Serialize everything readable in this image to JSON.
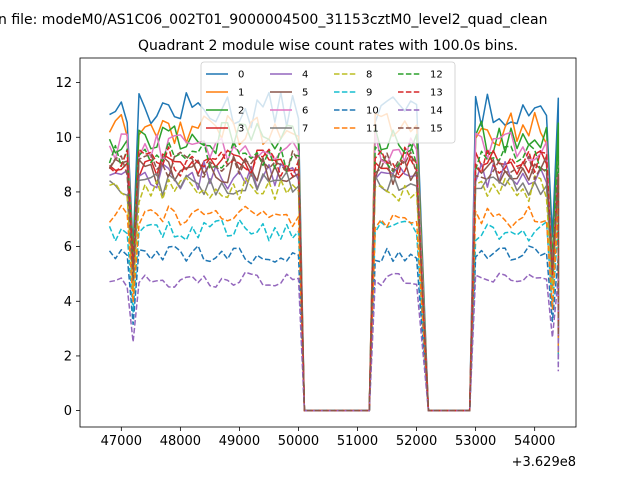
{
  "figure": {
    "suptitle": "n file: modeM0/AS1C06_002T01_9000004500_31153cztM0_level2_quad_clean",
    "x_offset_label": "+3.629e8"
  },
  "chart_data": {
    "type": "line",
    "title": "Quadrant 2 module wise count rates with 100.0s bins.",
    "xlabel": "",
    "ylabel": "",
    "xlim": [
      46300,
      54700
    ],
    "ylim": [
      -0.6,
      12.9
    ],
    "x_ticks": [
      47000,
      48000,
      49000,
      50000,
      51000,
      52000,
      53000,
      54000
    ],
    "x_tick_labels": [
      "47000",
      "48000",
      "49000",
      "50000",
      "51000",
      "52000",
      "53000",
      "54000"
    ],
    "y_ticks": [
      0,
      2,
      4,
      6,
      8,
      10,
      12
    ],
    "y_tick_labels": [
      "0",
      "2",
      "4",
      "6",
      "8",
      "10",
      "12"
    ],
    "grid": false,
    "legend_placement": "upper-center",
    "legend_columns": 4,
    "segments": [
      {
        "x_start": 46800,
        "x_end": 50000
      },
      {
        "x_start": 51300,
        "x_end": 52000
      },
      {
        "x_start": 53000,
        "x_end": 54400
      }
    ],
    "gap_points": [
      50100,
      51200,
      52200,
      52900
    ],
    "series": [
      {
        "name": "0",
        "level": 11.0,
        "color": "#1f77b4",
        "dash": "solid"
      },
      {
        "name": "1",
        "level": 10.3,
        "color": "#ff7f0e",
        "dash": "solid"
      },
      {
        "name": "2",
        "level": 10.0,
        "color": "#2ca02c",
        "dash": "solid"
      },
      {
        "name": "3",
        "level": 9.0,
        "color": "#d62728",
        "dash": "solid"
      },
      {
        "name": "4",
        "level": 8.6,
        "color": "#9467bd",
        "dash": "solid"
      },
      {
        "name": "5",
        "level": 8.8,
        "color": "#8c564b",
        "dash": "solid"
      },
      {
        "name": "6",
        "level": 9.6,
        "color": "#e377c2",
        "dash": "solid"
      },
      {
        "name": "7",
        "level": 8.3,
        "color": "#7f7f7f",
        "dash": "solid"
      },
      {
        "name": "8",
        "level": 8.1,
        "color": "#bcbd22",
        "dash": "dashed"
      },
      {
        "name": "9",
        "level": 6.6,
        "color": "#17becf",
        "dash": "dashed"
      },
      {
        "name": "10",
        "level": 5.7,
        "color": "#1f77b4",
        "dash": "dashed"
      },
      {
        "name": "11",
        "level": 7.1,
        "color": "#ff7f0e",
        "dash": "dashed"
      },
      {
        "name": "12",
        "level": 9.3,
        "color": "#2ca02c",
        "dash": "dashed"
      },
      {
        "name": "13",
        "level": 9.1,
        "color": "#d62728",
        "dash": "dashed"
      },
      {
        "name": "14",
        "level": 4.8,
        "color": "#9467bd",
        "dash": "dashed"
      },
      {
        "name": "15",
        "level": 9.0,
        "color": "#8c564b",
        "dash": "dashed"
      }
    ]
  }
}
